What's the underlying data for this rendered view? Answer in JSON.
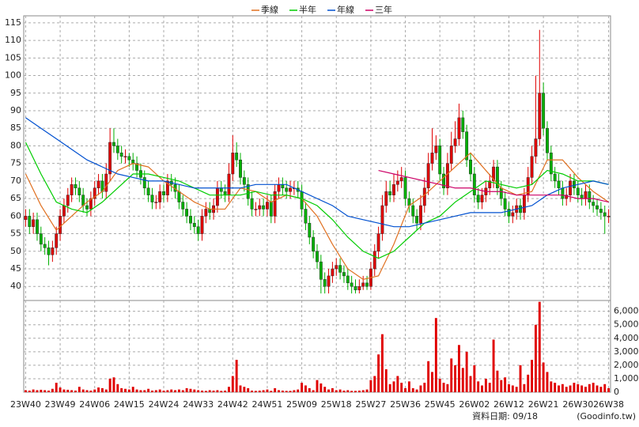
{
  "chart_data": {
    "type": "candlestick",
    "categories": [
      "23W40",
      null,
      null,
      null,
      null,
      null,
      null,
      null,
      null,
      "23W49",
      null,
      null,
      null,
      null,
      null,
      null,
      null,
      null,
      "24W06",
      null,
      null,
      null,
      null,
      null,
      null,
      null,
      null,
      "24W15",
      null,
      null,
      null,
      null,
      null,
      null,
      null,
      null,
      "24W24",
      null,
      null,
      null,
      null,
      null,
      null,
      null,
      null,
      "24W33",
      null,
      null,
      null,
      null,
      null,
      null,
      null,
      null,
      "24W42",
      null,
      null,
      null,
      null,
      null,
      null,
      null,
      null,
      "24W51",
      null,
      null,
      null,
      null,
      null,
      null,
      null,
      null,
      "25W09",
      null,
      null,
      null,
      null,
      null,
      null,
      null,
      null,
      "25W18",
      null,
      null,
      null,
      null,
      null,
      null,
      null,
      null,
      "25W27",
      null,
      null,
      null,
      null,
      null,
      null,
      null,
      null,
      "25W36",
      null,
      null,
      null,
      null,
      null,
      null,
      null,
      null,
      "25W45",
      null,
      null,
      null,
      null,
      null,
      null,
      null,
      null,
      "26W02",
      null,
      null,
      null,
      null,
      null,
      null,
      null,
      null,
      "26W12",
      null,
      null,
      null,
      null,
      null,
      null,
      null,
      null,
      "26W21",
      null,
      null,
      null,
      null,
      null,
      null,
      null,
      null,
      "26W30",
      null,
      null,
      null,
      null,
      null,
      null,
      null,
      "26W38"
    ],
    "ohlc": [
      [
        59,
        62,
        57,
        60
      ],
      [
        60,
        62,
        55,
        57
      ],
      [
        57,
        61,
        55,
        59
      ],
      [
        59,
        61,
        53,
        55
      ],
      [
        55,
        57,
        50,
        52
      ],
      [
        52,
        54,
        49,
        51
      ],
      [
        51,
        53,
        46,
        49
      ],
      [
        49,
        53,
        47,
        51
      ],
      [
        51,
        57,
        49,
        55
      ],
      [
        55,
        62,
        53,
        60
      ],
      [
        60,
        65,
        58,
        63
      ],
      [
        63,
        68,
        61,
        66
      ],
      [
        66,
        71,
        64,
        69
      ],
      [
        69,
        71,
        66,
        68
      ],
      [
        68,
        70,
        64,
        66
      ],
      [
        66,
        68,
        61,
        63
      ],
      [
        63,
        65,
        60,
        62
      ],
      [
        62,
        67,
        60,
        65
      ],
      [
        65,
        70,
        63,
        68
      ],
      [
        68,
        72,
        66,
        70
      ],
      [
        70,
        72,
        65,
        67
      ],
      [
        67,
        75,
        65,
        72
      ],
      [
        72,
        85,
        70,
        81
      ],
      [
        81,
        85,
        78,
        80
      ],
      [
        80,
        82,
        76,
        78
      ],
      [
        78,
        80,
        75,
        77
      ],
      [
        77,
        79,
        75,
        77
      ],
      [
        77,
        78,
        74,
        76
      ],
      [
        76,
        78,
        73,
        75
      ],
      [
        75,
        77,
        71,
        73
      ],
      [
        73,
        75,
        69,
        71
      ],
      [
        71,
        73,
        66,
        68
      ],
      [
        68,
        70,
        64,
        66
      ],
      [
        66,
        68,
        62,
        64
      ],
      [
        64,
        66,
        62,
        64
      ],
      [
        64,
        69,
        62,
        67
      ],
      [
        67,
        69,
        64,
        66
      ],
      [
        66,
        72,
        64,
        70
      ],
      [
        70,
        72,
        67,
        69
      ],
      [
        69,
        71,
        65,
        67
      ],
      [
        67,
        69,
        62,
        64
      ],
      [
        64,
        66,
        60,
        62
      ],
      [
        62,
        64,
        58,
        60
      ],
      [
        60,
        62,
        56,
        58
      ],
      [
        58,
        60,
        55,
        57
      ],
      [
        57,
        59,
        53,
        55
      ],
      [
        55,
        62,
        53,
        60
      ],
      [
        60,
        64,
        58,
        62
      ],
      [
        62,
        64,
        59,
        61
      ],
      [
        61,
        65,
        59,
        63
      ],
      [
        63,
        70,
        61,
        68
      ],
      [
        68,
        70,
        65,
        67
      ],
      [
        67,
        69,
        64,
        66
      ],
      [
        66,
        75,
        64,
        72
      ],
      [
        72,
        83,
        70,
        78
      ],
      [
        78,
        81,
        74,
        76
      ],
      [
        76,
        78,
        69,
        71
      ],
      [
        71,
        73,
        67,
        69
      ],
      [
        69,
        71,
        63,
        65
      ],
      [
        65,
        67,
        60,
        62
      ],
      [
        62,
        64,
        60,
        62
      ],
      [
        62,
        65,
        60,
        63
      ],
      [
        63,
        65,
        60,
        62
      ],
      [
        62,
        66,
        60,
        64
      ],
      [
        64,
        66,
        58,
        60
      ],
      [
        60,
        69,
        58,
        67
      ],
      [
        67,
        71,
        65,
        69
      ],
      [
        69,
        71,
        66,
        68
      ],
      [
        68,
        70,
        65,
        67
      ],
      [
        67,
        70,
        65,
        68
      ],
      [
        68,
        70,
        66,
        68
      ],
      [
        68,
        70,
        65,
        67
      ],
      [
        67,
        69,
        60,
        62
      ],
      [
        62,
        64,
        56,
        58
      ],
      [
        58,
        60,
        52,
        54
      ],
      [
        54,
        56,
        48,
        50
      ],
      [
        50,
        52,
        45,
        47
      ],
      [
        47,
        49,
        38,
        42
      ],
      [
        42,
        44,
        38,
        40
      ],
      [
        40,
        45,
        38,
        43
      ],
      [
        43,
        47,
        41,
        45
      ],
      [
        45,
        48,
        43,
        46
      ],
      [
        46,
        48,
        42,
        44
      ],
      [
        44,
        46,
        41,
        43
      ],
      [
        43,
        45,
        39,
        41
      ],
      [
        41,
        43,
        38,
        40
      ],
      [
        40,
        42,
        38,
        39
      ],
      [
        39,
        42,
        38,
        40
      ],
      [
        40,
        43,
        39,
        41
      ],
      [
        41,
        43,
        39,
        40
      ],
      [
        40,
        47,
        39,
        45
      ],
      [
        45,
        52,
        43,
        50
      ],
      [
        50,
        57,
        48,
        55
      ],
      [
        55,
        66,
        53,
        63
      ],
      [
        63,
        70,
        61,
        67
      ],
      [
        67,
        70,
        64,
        66
      ],
      [
        66,
        72,
        64,
        69
      ],
      [
        69,
        73,
        67,
        70
      ],
      [
        70,
        74,
        68,
        71
      ],
      [
        71,
        73,
        63,
        65
      ],
      [
        65,
        67,
        61,
        63
      ],
      [
        63,
        65,
        58,
        60
      ],
      [
        60,
        62,
        56,
        58
      ],
      [
        58,
        66,
        56,
        63
      ],
      [
        63,
        71,
        61,
        68
      ],
      [
        68,
        78,
        66,
        75
      ],
      [
        75,
        85,
        73,
        78
      ],
      [
        78,
        83,
        76,
        80
      ],
      [
        80,
        82,
        70,
        72
      ],
      [
        72,
        74,
        66,
        68
      ],
      [
        68,
        78,
        66,
        75
      ],
      [
        75,
        84,
        73,
        80
      ],
      [
        80,
        87,
        78,
        82
      ],
      [
        82,
        92,
        80,
        88
      ],
      [
        88,
        90,
        82,
        84
      ],
      [
        84,
        86,
        74,
        76
      ],
      [
        76,
        78,
        70,
        72
      ],
      [
        72,
        74,
        64,
        66
      ],
      [
        66,
        68,
        62,
        64
      ],
      [
        64,
        68,
        62,
        66
      ],
      [
        66,
        70,
        64,
        68
      ],
      [
        68,
        72,
        66,
        70
      ],
      [
        70,
        76,
        68,
        74
      ],
      [
        74,
        76,
        66,
        68
      ],
      [
        68,
        70,
        63,
        65
      ],
      [
        65,
        67,
        60,
        62
      ],
      [
        62,
        64,
        58,
        60
      ],
      [
        60,
        63,
        58,
        61
      ],
      [
        61,
        65,
        59,
        63
      ],
      [
        63,
        65,
        59,
        61
      ],
      [
        61,
        68,
        59,
        66
      ],
      [
        66,
        74,
        64,
        71
      ],
      [
        71,
        80,
        69,
        77
      ],
      [
        77,
        100,
        75,
        82
      ],
      [
        82,
        113,
        80,
        95
      ],
      [
        95,
        98,
        83,
        85
      ],
      [
        85,
        87,
        76,
        78
      ],
      [
        78,
        80,
        70,
        72
      ],
      [
        72,
        74,
        68,
        70
      ],
      [
        70,
        72,
        66,
        68
      ],
      [
        68,
        70,
        63,
        65
      ],
      [
        65,
        68,
        63,
        66
      ],
      [
        66,
        72,
        64,
        70
      ],
      [
        70,
        72,
        66,
        68
      ],
      [
        68,
        70,
        64,
        66
      ],
      [
        66,
        68,
        63,
        65
      ],
      [
        65,
        69,
        63,
        67
      ],
      [
        67,
        69,
        62,
        64
      ],
      [
        64,
        66,
        61,
        63
      ],
      [
        63,
        65,
        60,
        62
      ],
      [
        62,
        64,
        59,
        61
      ],
      [
        61,
        63,
        55,
        60
      ],
      [
        60,
        62,
        58,
        60
      ]
    ],
    "up_color": "#e00000",
    "down_color": "#00b000",
    "ylim": [
      36,
      117
    ],
    "yticks": [
      40,
      45,
      50,
      55,
      60,
      65,
      70,
      75,
      80,
      85,
      90,
      95,
      100,
      105,
      110,
      115
    ],
    "grid": true,
    "series": [
      {
        "name": "季線",
        "color": "#e07020",
        "x": [
          0,
          4,
          8,
          12,
          16,
          20,
          24,
          28,
          32,
          36,
          40,
          44,
          48,
          52,
          56,
          60,
          64,
          68,
          72,
          76,
          80,
          84,
          88,
          92,
          96,
          100,
          104,
          108,
          112,
          116,
          120,
          124,
          128,
          132,
          136,
          140,
          144,
          148,
          152
        ],
        "values": [
          72,
          63,
          56,
          60,
          64,
          67,
          73,
          75,
          74,
          70,
          67,
          64,
          62,
          62,
          68,
          67,
          64,
          66,
          65,
          60,
          52,
          45,
          42,
          43,
          52,
          63,
          66,
          70,
          74,
          78,
          73,
          68,
          66,
          67,
          76,
          76,
          71,
          67,
          64
        ]
      },
      {
        "name": "半年",
        "color": "#00cc00",
        "x": [
          0,
          4,
          8,
          12,
          16,
          20,
          24,
          28,
          32,
          36,
          40,
          44,
          48,
          52,
          56,
          60,
          64,
          68,
          72,
          76,
          80,
          84,
          88,
          92,
          96,
          100,
          104,
          108,
          112,
          116,
          120,
          124,
          128,
          132,
          136,
          140,
          144,
          148,
          152
        ],
        "values": [
          81,
          72,
          64,
          62,
          61,
          64,
          68,
          72,
          72,
          71,
          70,
          68,
          66,
          66,
          66,
          67,
          66,
          66,
          65,
          63,
          59,
          54,
          50,
          48,
          50,
          54,
          58,
          60,
          64,
          67,
          70,
          69,
          68,
          69,
          73,
          72,
          70,
          70,
          69
        ]
      },
      {
        "name": "年線",
        "color": "#0050d0",
        "x": [
          0,
          4,
          8,
          12,
          16,
          20,
          24,
          28,
          32,
          36,
          40,
          44,
          48,
          52,
          56,
          60,
          64,
          68,
          72,
          76,
          80,
          84,
          88,
          92,
          96,
          100,
          104,
          108,
          112,
          116,
          120,
          124,
          128,
          132,
          136,
          140,
          144,
          148,
          152
        ],
        "values": [
          88,
          85,
          82,
          79,
          76,
          74,
          72,
          71,
          70,
          70,
          69,
          68,
          68,
          68,
          68,
          69,
          69,
          69,
          67,
          65,
          63,
          60,
          59,
          58,
          57,
          57,
          58,
          59,
          60,
          61,
          61,
          61,
          62,
          63,
          66,
          68,
          69,
          70,
          69
        ]
      },
      {
        "name": "三年",
        "color": "#cc0066",
        "x": [
          92,
          96,
          100,
          104,
          108,
          112,
          116,
          120,
          124,
          128,
          132,
          136,
          140,
          144,
          148,
          152
        ],
        "values": [
          73,
          72,
          71,
          70,
          69,
          68,
          68,
          67,
          67,
          66,
          66,
          66,
          66,
          65,
          65,
          64
        ]
      }
    ],
    "volume": {
      "color": "#e00000",
      "ylim": [
        0,
        6800
      ],
      "yticks": [
        0,
        {
          "value": 1000,
          "label": "1,000"
        },
        {
          "value": 2000,
          "label": "2,000"
        },
        {
          "value": 3000,
          "label": "3,000"
        },
        {
          "value": 4000,
          "label": "4,000"
        },
        {
          "value": 5000,
          "label": "5,000"
        },
        {
          "value": 6000,
          "label": "6,000"
        }
      ],
      "values": [
        150,
        120,
        200,
        150,
        180,
        150,
        120,
        250,
        700,
        350,
        200,
        180,
        150,
        120,
        400,
        200,
        150,
        120,
        200,
        350,
        300,
        200,
        1000,
        1100,
        600,
        300,
        250,
        200,
        400,
        200,
        150,
        150,
        250,
        120,
        150,
        200,
        120,
        150,
        200,
        150,
        200,
        150,
        300,
        250,
        200,
        150,
        120,
        100,
        150,
        120,
        150,
        100,
        120,
        400,
        1200,
        2400,
        500,
        400,
        300,
        120,
        100,
        120,
        150,
        200,
        100,
        300,
        150,
        120,
        100,
        100,
        150,
        200,
        700,
        500,
        300,
        150,
        900,
        650,
        400,
        200,
        300,
        150,
        200,
        120,
        150,
        100,
        100,
        120,
        150,
        200,
        900,
        1200,
        2800,
        4300,
        1700,
        600,
        800,
        1200,
        700,
        300,
        800,
        300,
        200,
        500,
        700,
        2300,
        1500,
        5500,
        1000,
        700,
        600,
        2500,
        2000,
        3500,
        1800,
        3000,
        1200,
        2000,
        800,
        500,
        1000,
        700,
        3900,
        1600,
        900,
        1100,
        600,
        500,
        400,
        2000,
        600,
        1300,
        2400,
        5000,
        6700,
        2200,
        1500,
        800,
        700,
        500,
        600,
        400,
        500,
        700,
        600,
        500,
        400,
        600,
        700,
        500,
        400,
        600,
        300
      ]
    },
    "footer": "資料日期: 09/18",
    "source": "(Goodinfo.tw)"
  }
}
